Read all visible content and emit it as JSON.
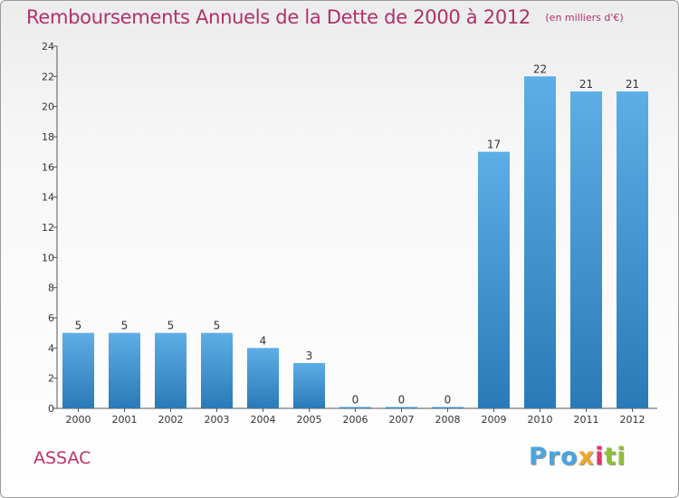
{
  "chart_data": {
    "type": "bar",
    "title": "Remboursements Annuels de la Dette de 2000 à 2012",
    "unit_note": "(en milliers d'€)",
    "xlabel": "",
    "ylabel": "",
    "categories": [
      "2000",
      "2001",
      "2002",
      "2003",
      "2004",
      "2005",
      "2006",
      "2007",
      "2008",
      "2009",
      "2010",
      "2011",
      "2012"
    ],
    "values": [
      5,
      5,
      5,
      5,
      4,
      3,
      0,
      0,
      0,
      17,
      22,
      21,
      21
    ],
    "data_labels": [
      "5",
      "5",
      "5",
      "5",
      "4",
      "3",
      "0",
      "0",
      "0",
      "17",
      "22",
      "21",
      "21"
    ],
    "ylim": [
      0,
      24
    ],
    "yticks": [
      0,
      2,
      4,
      6,
      8,
      10,
      12,
      14,
      16,
      18,
      20,
      22,
      24
    ],
    "grid": false,
    "bar_color_top": "#5daee6",
    "bar_color_bottom": "#2a7ab8"
  },
  "footer": {
    "commune": "ASSAC",
    "logo": {
      "p1": "Pro",
      "p2": "x",
      "p3": "i",
      "p4": "ti"
    }
  },
  "colors": {
    "title": "#b0306a",
    "commune": "#c2306a"
  }
}
